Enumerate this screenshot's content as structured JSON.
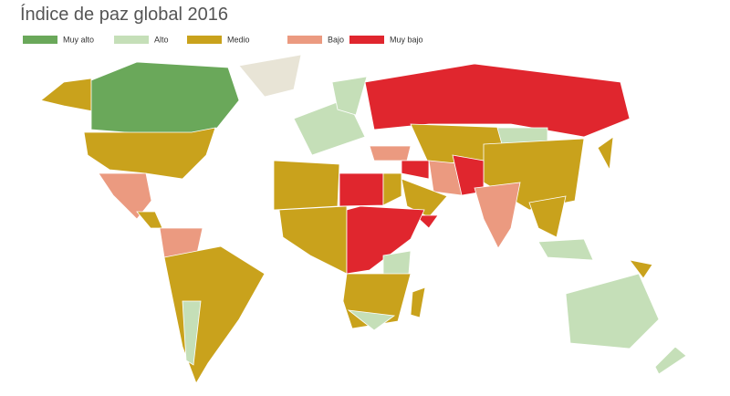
{
  "title": "Índice de paz global 2016",
  "legend": [
    {
      "label": "Muy alto",
      "color": "#6aa85a"
    },
    {
      "label": "Alto",
      "color": "#c5dfb8"
    },
    {
      "label": "Medio",
      "color": "#c9a21c"
    },
    {
      "label": "Bajo",
      "color": "#eb9a80"
    },
    {
      "label": "Muy bajo",
      "color": "#e0262e"
    }
  ]
}
